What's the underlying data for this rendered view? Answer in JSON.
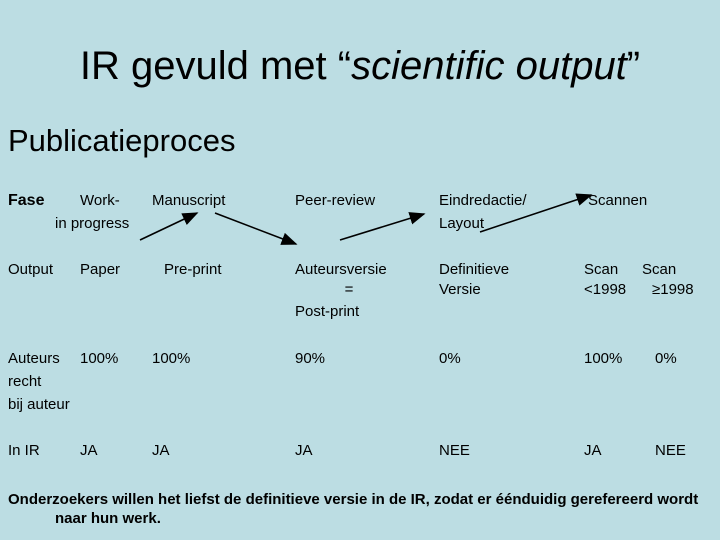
{
  "title": {
    "prefix": "IR gevuld met “",
    "italic": "scientific output",
    "suffix": "”"
  },
  "subtitle": "Publicatieproces",
  "phase_row": {
    "label": "Fase",
    "stages": {
      "work_line1": "Work-",
      "work_line2": "in progress",
      "manuscript": "Manuscript",
      "peer_review": "Peer-review",
      "eindredactie_line1": "Eindredactie/",
      "eindredactie_line2": "Layout",
      "scannen": "Scannen"
    }
  },
  "output_row": {
    "label": "Output",
    "paper": "Paper",
    "preprint": "Pre-print",
    "auteursversie_line1": "Auteursversie",
    "auteursversie_line2": "=",
    "auteursversie_line3": "Post-print",
    "definitieve_line1": "Definitieve",
    "definitieve_line2": "Versie",
    "scan1_line1": "Scan",
    "scan1_line2": "<1998",
    "scan2_line1": "Scan",
    "scan2_line2": "≥1998"
  },
  "rights_row": {
    "label_line1": "Auteurs",
    "label_line2": "recht",
    "label_line3": "bij auteur",
    "values": [
      "100%",
      "100%",
      "90%",
      "0%",
      "100%",
      "0%"
    ]
  },
  "ir_row": {
    "label": "In IR",
    "values": [
      "JA",
      "JA",
      "JA",
      "NEE",
      "JA",
      "NEE"
    ]
  },
  "footer": "Onderzoekers willen het liefst de definitieve versie in de IR, zodat er éénduidig gerefereerd wordt naar hun werk."
}
